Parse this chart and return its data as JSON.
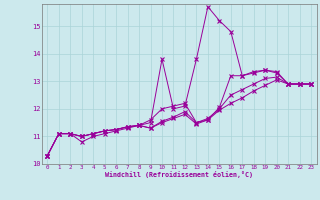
{
  "xlabel": "Windchill (Refroidissement éolien,°C)",
  "background_color": "#cce9ed",
  "grid_color": "#aad4d8",
  "line_color": "#990099",
  "xlim": [
    -0.5,
    23.5
  ],
  "ylim": [
    10.0,
    15.8
  ],
  "xticks": [
    0,
    1,
    2,
    3,
    4,
    5,
    6,
    7,
    8,
    9,
    10,
    11,
    12,
    13,
    14,
    15,
    16,
    17,
    18,
    19,
    20,
    21,
    22,
    23
  ],
  "yticks": [
    10,
    11,
    12,
    13,
    14,
    15
  ],
  "series": [
    [
      10.3,
      11.1,
      11.1,
      10.8,
      11.0,
      11.1,
      11.2,
      11.3,
      11.4,
      11.5,
      13.8,
      12.0,
      12.1,
      13.8,
      15.7,
      15.2,
      14.8,
      13.2,
      13.35,
      13.4,
      13.35,
      12.9,
      12.9,
      12.9
    ],
    [
      10.3,
      11.1,
      11.1,
      11.0,
      11.1,
      11.2,
      11.25,
      11.35,
      11.4,
      11.6,
      12.0,
      12.1,
      12.2,
      11.5,
      11.6,
      12.05,
      13.2,
      13.2,
      13.3,
      13.4,
      13.3,
      12.9,
      12.9,
      12.9
    ],
    [
      10.3,
      11.1,
      11.1,
      11.0,
      11.1,
      11.2,
      11.25,
      11.35,
      11.4,
      11.3,
      11.55,
      11.7,
      11.9,
      11.5,
      11.65,
      12.0,
      12.5,
      12.7,
      12.9,
      13.1,
      13.15,
      12.9,
      12.9,
      12.9
    ],
    [
      10.3,
      11.1,
      11.1,
      11.0,
      11.1,
      11.2,
      11.25,
      11.35,
      11.4,
      11.3,
      11.5,
      11.65,
      11.8,
      11.45,
      11.6,
      11.95,
      12.2,
      12.4,
      12.65,
      12.85,
      13.05,
      12.9,
      12.9,
      12.9
    ]
  ]
}
